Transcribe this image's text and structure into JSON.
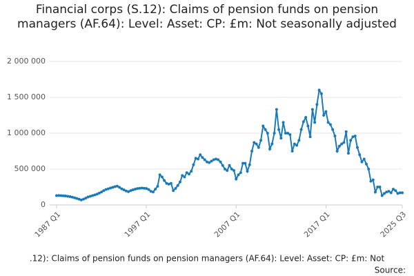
{
  "chart_data": {
    "type": "line",
    "title": "Financial corps (S.12): Claims of pension funds on pension managers (AF.64): Level: Asset: CP: £m: Not seasonally adjusted",
    "footer": ".12): Claims of pension funds on pension managers (AF.64): Level: Asset: CP: £m: Not",
    "source": "Source:",
    "categories": [
      "1987 Q1",
      null,
      null,
      null,
      null,
      null,
      null,
      null,
      null,
      null,
      null,
      null,
      null,
      null,
      null,
      null,
      null,
      null,
      null,
      null,
      null,
      null,
      null,
      null,
      null,
      null,
      null,
      null,
      null,
      null,
      null,
      null,
      null,
      null,
      null,
      null,
      null,
      null,
      null,
      null,
      "1997 Q1",
      null,
      null,
      null,
      null,
      null,
      null,
      null,
      null,
      null,
      null,
      null,
      null,
      null,
      null,
      null,
      null,
      null,
      null,
      null,
      null,
      null,
      null,
      null,
      null,
      null,
      null,
      null,
      null,
      null,
      null,
      null,
      null,
      null,
      null,
      null,
      null,
      null,
      null,
      null,
      "2007 Q1",
      null,
      null,
      null,
      null,
      null,
      null,
      null,
      null,
      null,
      null,
      null,
      null,
      null,
      null,
      null,
      null,
      null,
      null,
      null,
      null,
      null,
      null,
      null,
      null,
      null,
      null,
      null,
      null,
      null,
      null,
      null,
      null,
      null,
      null,
      null,
      null,
      null,
      null,
      null,
      "2017 Q1",
      null,
      null,
      null,
      null,
      null,
      null,
      null,
      null,
      null,
      null,
      null,
      null,
      null,
      null,
      null,
      null,
      null,
      null,
      null,
      null,
      null,
      null,
      null,
      null,
      null,
      null,
      null,
      null,
      null,
      null,
      null,
      null,
      null,
      "2025 Q3"
    ],
    "series": [
      {
        "color": "#1a7ab8",
        "values": [
          130000,
          131000,
          130000,
          128000,
          125000,
          120000,
          115000,
          108000,
          100000,
          90000,
          80000,
          70000,
          80000,
          95000,
          110000,
          120000,
          130000,
          140000,
          150000,
          165000,
          180000,
          200000,
          215000,
          225000,
          235000,
          245000,
          255000,
          262000,
          245000,
          225000,
          210000,
          195000,
          185000,
          200000,
          210000,
          220000,
          228000,
          232000,
          235000,
          232000,
          230000,
          215000,
          190000,
          180000,
          220000,
          260000,
          420000,
          390000,
          340000,
          300000,
          290000,
          300000,
          200000,
          230000,
          270000,
          320000,
          410000,
          390000,
          450000,
          430000,
          470000,
          560000,
          650000,
          640000,
          700000,
          660000,
          630000,
          600000,
          590000,
          610000,
          630000,
          640000,
          630000,
          600000,
          550000,
          500000,
          480000,
          550000,
          500000,
          480000,
          360000,
          420000,
          450000,
          580000,
          580000,
          470000,
          560000,
          750000,
          870000,
          850000,
          800000,
          900000,
          1100000,
          1050000,
          1000000,
          780000,
          850000,
          1000000,
          1330000,
          1050000,
          930000,
          1150000,
          1000000,
          1000000,
          980000,
          750000,
          850000,
          830000,
          900000,
          1050000,
          1160000,
          1220000,
          1100000,
          950000,
          1330000,
          1150000,
          1400000,
          1600000,
          1550000,
          1250000,
          1300000,
          1150000,
          1120000,
          1050000,
          960000,
          750000,
          820000,
          850000,
          870000,
          1020000,
          720000,
          900000,
          950000,
          960000,
          800000,
          700000,
          600000,
          640000,
          570000,
          500000,
          330000,
          350000,
          180000,
          250000,
          250000,
          130000,
          160000,
          180000,
          190000,
          170000,
          220000,
          200000,
          160000,
          170000,
          170000
        ]
      }
    ],
    "ylim": [
      0,
      2000000
    ],
    "yticks": [
      0,
      {
        "value": 500000,
        "label": "500 000"
      },
      {
        "value": 1000000,
        "label": "1 000 000"
      },
      {
        "value": 1500000,
        "label": "1 500 000"
      },
      {
        "value": 2000000,
        "label": "2 000 000"
      }
    ],
    "grid": true
  }
}
